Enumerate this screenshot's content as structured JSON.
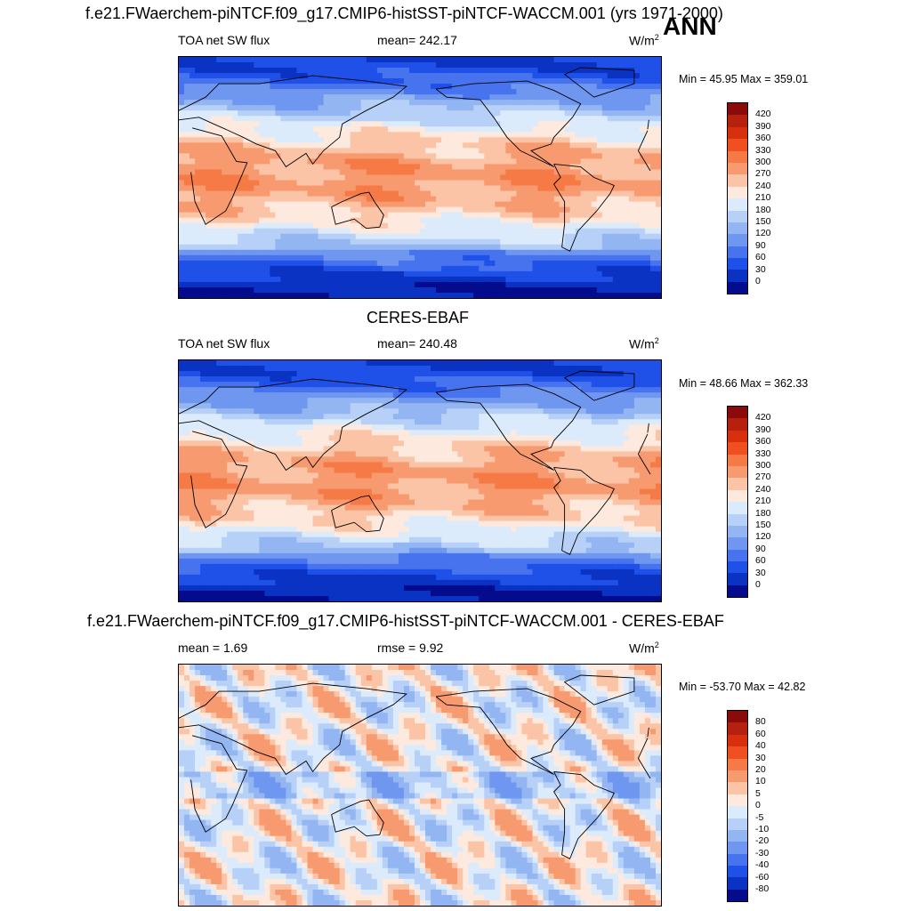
{
  "title": "f.e21.FWaerchem-piNTCF.f09_g17.CMIP6-histSST-piNTCF-WACCM.001 (yrs 1971-2000)",
  "season": "ANN",
  "panels": [
    {
      "heading": "",
      "left_label": "TOA net SW flux",
      "center_label": "mean= 242.17",
      "units": "W/m",
      "units_exp": "2",
      "minmax": "Min =  45.95 Max = 359.01",
      "colorbar": {
        "labels": [
          "420",
          "390",
          "360",
          "330",
          "300",
          "270",
          "240",
          "210",
          "180",
          "150",
          "120",
          "90",
          "60",
          "30",
          "0"
        ],
        "colors": [
          "#8b0a0a",
          "#b5200f",
          "#d8300f",
          "#f0501f",
          "#f57a45",
          "#f79a70",
          "#fbc4a6",
          "#fde9dd",
          "#dcebfb",
          "#b7d0f7",
          "#93b6f3",
          "#6f97f0",
          "#4774ee",
          "#1f50e8",
          "#0a33c4",
          "#040b8c"
        ]
      }
    },
    {
      "heading": "CERES-EBAF",
      "left_label": "TOA net SW flux",
      "center_label": "mean= 240.48",
      "units": "W/m",
      "units_exp": "2",
      "minmax": "Min =  48.66 Max = 362.33",
      "colorbar": {
        "labels": [
          "420",
          "390",
          "360",
          "330",
          "300",
          "270",
          "240",
          "210",
          "180",
          "150",
          "120",
          "90",
          "60",
          "30",
          "0"
        ],
        "colors": [
          "#8b0a0a",
          "#b5200f",
          "#d8300f",
          "#f0501f",
          "#f57a45",
          "#f79a70",
          "#fbc4a6",
          "#fde9dd",
          "#dcebfb",
          "#b7d0f7",
          "#93b6f3",
          "#6f97f0",
          "#4774ee",
          "#1f50e8",
          "#0a33c4",
          "#040b8c"
        ]
      }
    },
    {
      "heading": "f.e21.FWaerchem-piNTCF.f09_g17.CMIP6-histSST-piNTCF-WACCM.001 - CERES-EBAF",
      "left_label": "mean =   1.69",
      "center_label": "rmse =   9.92",
      "units": "W/m",
      "units_exp": "2",
      "minmax": "Min = -53.70 Max =  42.82",
      "colorbar": {
        "labels": [
          "80",
          "60",
          "40",
          "30",
          "20",
          "10",
          "5",
          "0",
          "-5",
          "-10",
          "-20",
          "-30",
          "-40",
          "-60",
          "-80"
        ],
        "colors": [
          "#8b0a0a",
          "#b5200f",
          "#d8300f",
          "#f0501f",
          "#f57a45",
          "#f79a70",
          "#fbc4a6",
          "#fde9dd",
          "#dcebfb",
          "#b7d0f7",
          "#93b6f3",
          "#6f97f0",
          "#4774ee",
          "#1f50e8",
          "#0a33c4",
          "#040b8c"
        ]
      }
    }
  ]
}
